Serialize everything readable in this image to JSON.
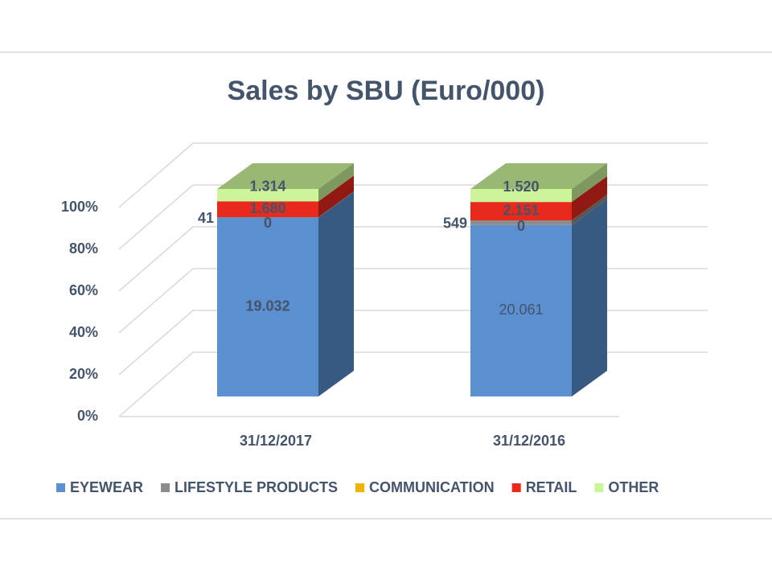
{
  "chart_data": {
    "type": "bar3d_stacked100",
    "title": "Sales by SBU (Euro/000)",
    "categories": [
      "31/12/2017",
      "31/12/2016"
    ],
    "series": [
      {
        "name": "EYEWEAR",
        "color": "#5b8fd0",
        "values": [
          19032,
          20061
        ],
        "value_labels": [
          "19.032",
          "20.061"
        ]
      },
      {
        "name": "LIFESTYLE PRODUCTS",
        "color": "#8c8c8c",
        "values": [
          41,
          549
        ],
        "value_labels": [
          "41",
          "549"
        ]
      },
      {
        "name": "COMMUNICATION",
        "color": "#f0b400",
        "values": [
          0,
          0
        ],
        "value_labels": [
          "0",
          "0"
        ]
      },
      {
        "name": "RETAIL",
        "color": "#e8291c",
        "values": [
          1680,
          2151
        ],
        "value_labels": [
          "1.680",
          "2.151"
        ]
      },
      {
        "name": "OTHER",
        "color": "#ccf59a",
        "values": [
          1314,
          1520
        ],
        "value_labels": [
          "1.314",
          "1.520"
        ]
      }
    ],
    "ylim": [
      0,
      100
    ],
    "yticks": [
      {
        "value": 0,
        "label": "0%"
      },
      {
        "value": 20,
        "label": "20%"
      },
      {
        "value": 40,
        "label": "40%"
      },
      {
        "value": 60,
        "label": "60%"
      },
      {
        "value": 80,
        "label": "80%"
      },
      {
        "value": 100,
        "label": "100%"
      }
    ],
    "grid": true
  }
}
